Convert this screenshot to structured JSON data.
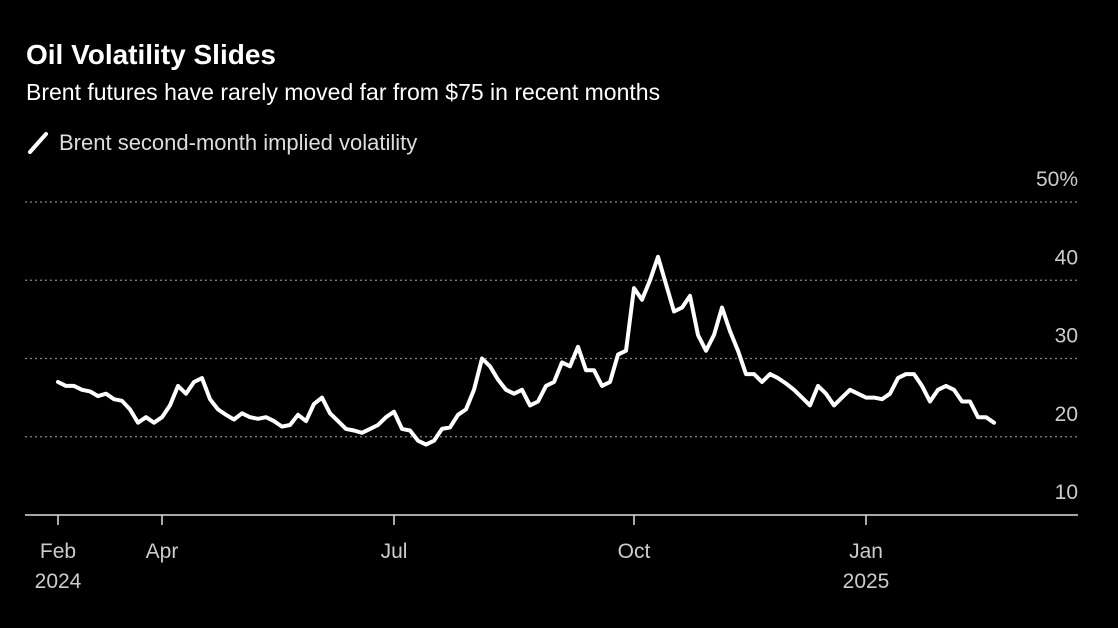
{
  "chart_data": {
    "type": "line",
    "title": "Oil Volatility Slides",
    "subtitle": "Brent futures have rarely moved far from $75 in recent months",
    "categories": [
      "Feb 2024",
      null,
      null,
      null,
      null,
      null,
      null,
      null,
      null,
      null,
      null,
      null,
      null,
      "Apr",
      null,
      null,
      null,
      null,
      null,
      null,
      null,
      null,
      null,
      null,
      null,
      null,
      null,
      null,
      null,
      null,
      null,
      null,
      null,
      null,
      null,
      null,
      null,
      null,
      null,
      null,
      null,
      null,
      "Jul",
      null,
      null,
      null,
      null,
      null,
      null,
      null,
      null,
      null,
      null,
      null,
      null,
      null,
      null,
      null,
      null,
      null,
      null,
      null,
      null,
      null,
      null,
      null,
      null,
      null,
      null,
      null,
      null,
      null,
      "Oct",
      null,
      null,
      null,
      null,
      null,
      null,
      null,
      null,
      null,
      null,
      null,
      null,
      null,
      null,
      null,
      null,
      null,
      null,
      null,
      null,
      null,
      null,
      null,
      null,
      null,
      null,
      null,
      null,
      "Jan 2025",
      null,
      null,
      null,
      null,
      null,
      null,
      null,
      null,
      null,
      null,
      null,
      null,
      null,
      null,
      null,
      null
    ],
    "series": [
      {
        "name": "Brent second-month implied volatility",
        "color": "#ffffff",
        "values": [
          27.0,
          26.5,
          26.5,
          26.0,
          25.8,
          25.2,
          25.5,
          24.8,
          24.6,
          23.5,
          21.8,
          22.5,
          21.8,
          22.5,
          24.0,
          26.5,
          25.5,
          27.0,
          27.5,
          24.8,
          23.5,
          22.8,
          22.2,
          23.0,
          22.5,
          22.3,
          22.5,
          22.0,
          21.3,
          21.5,
          22.8,
          22.0,
          24.2,
          25.0,
          23.0,
          22.0,
          21.0,
          20.8,
          20.5,
          21.0,
          21.5,
          22.5,
          23.2,
          21.0,
          20.8,
          19.5,
          19.0,
          19.5,
          21.0,
          21.2,
          22.8,
          23.5,
          26.0,
          30.0,
          29.0,
          27.3,
          26.0,
          25.5,
          26.0,
          24.0,
          24.5,
          26.5,
          27.0,
          29.5,
          29.0,
          31.5,
          28.5,
          28.5,
          26.5,
          27.0,
          30.5,
          31.0,
          39.0,
          37.5,
          40.0,
          43.0,
          39.5,
          36.0,
          36.5,
          38.0,
          33.0,
          31.0,
          33.0,
          36.5,
          33.5,
          31.0,
          28.0,
          28.0,
          27.0,
          28.0,
          27.5,
          26.8,
          26.0,
          25.0,
          24.0,
          26.5,
          25.5,
          24.0,
          25.0,
          26.0,
          25.5,
          25.0,
          25.0,
          24.8,
          25.5,
          27.5,
          28.0,
          28.0,
          26.5,
          24.5,
          26.0,
          26.5,
          26.0,
          24.5,
          24.5,
          22.5,
          22.5,
          21.8
        ]
      }
    ],
    "ylim": [
      10,
      50
    ],
    "yticks": [
      10,
      20,
      30,
      40,
      {
        "value": 50,
        "label": "50%"
      }
    ],
    "grid": true
  }
}
